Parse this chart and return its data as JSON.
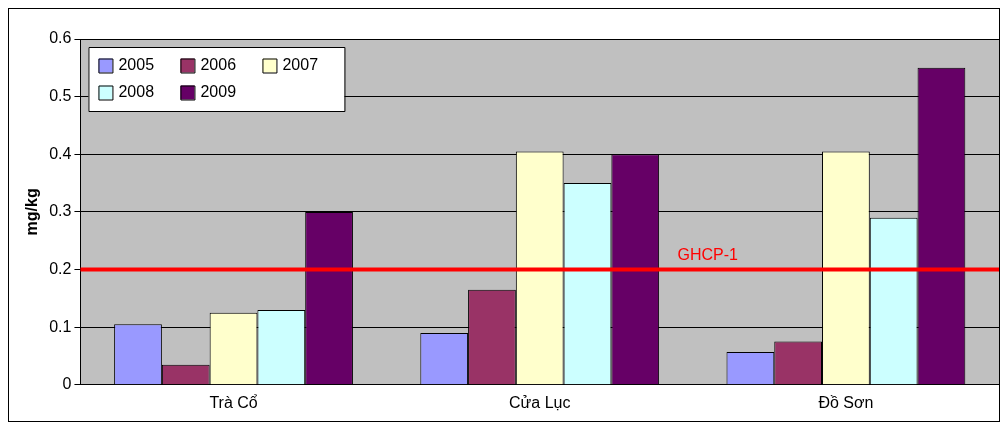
{
  "chart_data": {
    "type": "bar",
    "ylabel": "mg/kg",
    "categories": [
      "Trà Cổ",
      "Cửa Lục",
      "Đồ Sơn"
    ],
    "series": [
      {
        "name": "2005",
        "color": "#9999ff",
        "values": [
          0.105,
          0.09,
          0.057
        ]
      },
      {
        "name": "2006",
        "color": "#993366",
        "values": [
          0.035,
          0.165,
          0.075
        ]
      },
      {
        "name": "2007",
        "color": "#ffffcc",
        "values": [
          0.125,
          0.405,
          0.405
        ]
      },
      {
        "name": "2008",
        "color": "#ccffff",
        "values": [
          0.13,
          0.35,
          0.29
        ]
      },
      {
        "name": "2009",
        "color": "#660066",
        "values": [
          0.3,
          0.4,
          0.55
        ]
      }
    ],
    "ylim": [
      0,
      0.6
    ],
    "yticks": [
      0,
      0.1,
      0.2,
      0.3,
      0.4,
      0.5,
      0.6
    ],
    "grid": "y",
    "legend": "top left",
    "ref_lines": [
      {
        "axis": "y",
        "value": 0.2,
        "label": "GHCP-1",
        "color": "#ff0000"
      }
    ]
  }
}
